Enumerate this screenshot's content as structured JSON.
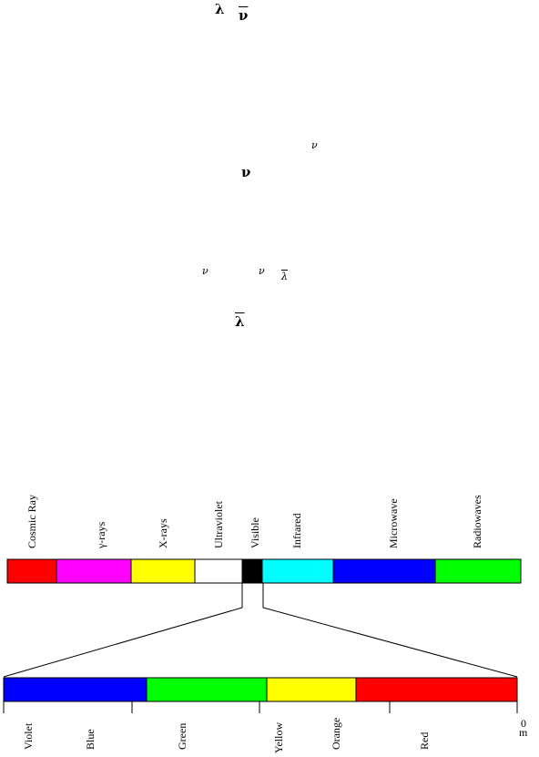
{
  "symbols": {
    "lambda_bold": "λ",
    "nu_bar_bold": "ν",
    "nu_small_right": "ν",
    "nu_bold_mid": "ν",
    "nu_small_a": "ν",
    "nu_small_b": "ν",
    "lambda_bar_small": "λ",
    "lambda_bar_bold": "λ"
  },
  "spectrum": {
    "bands": [
      {
        "label": "Cosmic  Ray",
        "color": "#ff0000"
      },
      {
        "label": "γ-rays",
        "color": "#ff00ff"
      },
      {
        "label": "X-rays",
        "color": "#ffff00"
      },
      {
        "label": "Ultraviolet",
        "color": "#ffffff"
      },
      {
        "label": "Visible",
        "color": "#000000"
      },
      {
        "label": "Infrared",
        "color": "#00ffff"
      },
      {
        "label": "Microwave",
        "color": "#0000ff"
      },
      {
        "label": "Radiowaves",
        "color": "#00ff00"
      }
    ]
  },
  "visible": {
    "bands": [
      {
        "color": "#0000ff"
      },
      {
        "color": "#00ff00"
      },
      {
        "color": "#ffff00"
      },
      {
        "color": "#ff0000"
      }
    ],
    "labels": [
      "Violet",
      "Blue",
      "Green",
      "Yellow",
      "Orange",
      "Red"
    ],
    "end_label": "0",
    "unit_label": "m"
  }
}
